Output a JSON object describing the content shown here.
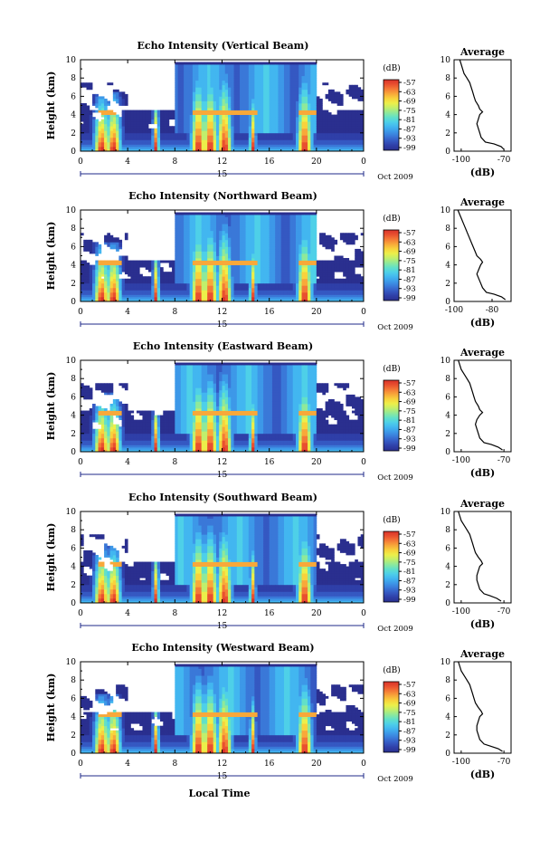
{
  "colors": {
    "scale": [
      "#2a2f8f",
      "#2f3fa8",
      "#3558c2",
      "#3a78d8",
      "#3d98e8",
      "#42b6f0",
      "#4ed0e8",
      "#62e0c8",
      "#8fe99a",
      "#c1ef6c",
      "#ecef4a",
      "#f8d23c",
      "#f8a83a",
      "#f47a36",
      "#e9502f",
      "#d8322a"
    ],
    "background": "#ffffff",
    "line": "#000000",
    "axis_marker": "#1f2a8a"
  },
  "labels": {
    "x_axis": "Local Time",
    "colorbar_unit": "(dB)",
    "colorbar_ticks": [
      "-57",
      "-63",
      "-69",
      "-75",
      "-81",
      "-87",
      "-93",
      "-99"
    ],
    "day_label": "15",
    "month_label": "Oct 2009",
    "avg_title": "Average",
    "avg_xlabel": "(dB)",
    "y_axis": "Height (km)"
  },
  "chart_data": [
    {
      "type": "heatmap",
      "title": "Echo Intensity (Vertical Beam)",
      "xlabel": "",
      "ylabel": "Height (km)",
      "x_ticks": [
        "0",
        "4",
        "8",
        "12",
        "16",
        "20",
        "0"
      ],
      "y_ticks": [
        "0",
        "2",
        "4",
        "6",
        "8",
        "10"
      ],
      "xlim": [
        0,
        24
      ],
      "ylim": [
        0,
        10
      ],
      "zlim": [
        -99,
        -57
      ],
      "colorbar_label": "(dB)",
      "avg_profile": {
        "title": "Average",
        "xlabel": "(dB)",
        "x_ticks": [
          "-100",
          "-70"
        ],
        "y_ticks": [
          "0",
          "2",
          "4",
          "6",
          "8",
          "10"
        ],
        "xlim": [
          -105,
          -65
        ],
        "height_km": [
          0.2,
          0.5,
          0.8,
          1.0,
          1.5,
          2.0,
          2.5,
          3.0,
          3.5,
          4.0,
          4.3,
          4.6,
          5.0,
          5.5,
          6.0,
          6.5,
          7.0,
          7.5,
          8.0,
          8.5,
          9.0,
          9.5,
          10.0
        ],
        "db": [
          -70,
          -72,
          -77,
          -83,
          -86,
          -87,
          -88,
          -89,
          -88,
          -87,
          -85,
          -87,
          -88,
          -90,
          -91,
          -92,
          -93,
          -94,
          -96,
          -98,
          -99,
          -100,
          -101
        ]
      }
    },
    {
      "type": "heatmap",
      "title": "Echo Intensity (Northward Beam)",
      "xlabel": "",
      "ylabel": "Height (km)",
      "x_ticks": [
        "0",
        "4",
        "8",
        "12",
        "16",
        "20",
        "0"
      ],
      "y_ticks": [
        "0",
        "2",
        "4",
        "6",
        "8",
        "10"
      ],
      "xlim": [
        0,
        24
      ],
      "ylim": [
        0,
        10
      ],
      "zlim": [
        -99,
        -57
      ],
      "colorbar_label": "(dB)",
      "avg_profile": {
        "title": "Average",
        "xlabel": "(dB)",
        "x_ticks": [
          "-100",
          "-80"
        ],
        "y_ticks": [
          "0",
          "2",
          "4",
          "6",
          "8",
          "10"
        ],
        "xlim": [
          -100,
          -70
        ],
        "height_km": [
          0.2,
          0.5,
          0.8,
          1.0,
          1.5,
          2.0,
          2.5,
          3.0,
          3.5,
          4.0,
          4.3,
          4.6,
          5.0,
          5.5,
          6.0,
          6.5,
          7.0,
          7.5,
          8.0,
          8.5,
          9.0,
          9.5,
          10.0
        ],
        "db": [
          -73,
          -75,
          -79,
          -83,
          -85,
          -86,
          -87,
          -88,
          -87,
          -86,
          -85,
          -86,
          -88,
          -89,
          -90,
          -91,
          -92,
          -93,
          -94,
          -95,
          -96,
          -97,
          -98
        ]
      }
    },
    {
      "type": "heatmap",
      "title": "Echo Intensity (Eastward Beam)",
      "xlabel": "",
      "ylabel": "Height (km)",
      "x_ticks": [
        "0",
        "4",
        "8",
        "12",
        "16",
        "20",
        "0"
      ],
      "y_ticks": [
        "0",
        "2",
        "4",
        "6",
        "8",
        "10"
      ],
      "xlim": [
        0,
        24
      ],
      "ylim": [
        0,
        10
      ],
      "zlim": [
        -99,
        -57
      ],
      "colorbar_label": "(dB)",
      "avg_profile": {
        "title": "Average",
        "xlabel": "(dB)",
        "x_ticks": [
          "-100",
          "-70"
        ],
        "y_ticks": [
          "0",
          "2",
          "4",
          "6",
          "8",
          "10"
        ],
        "xlim": [
          -105,
          -65
        ],
        "height_km": [
          0.2,
          0.5,
          0.8,
          1.0,
          1.5,
          2.0,
          2.5,
          3.0,
          3.5,
          4.0,
          4.3,
          4.6,
          5.0,
          5.5,
          6.0,
          6.5,
          7.0,
          7.5,
          8.0,
          8.5,
          9.0,
          9.5,
          10.0
        ],
        "db": [
          -71,
          -74,
          -79,
          -84,
          -87,
          -88,
          -89,
          -90,
          -89,
          -87,
          -85,
          -87,
          -88,
          -90,
          -91,
          -92,
          -93,
          -94,
          -96,
          -98,
          -100,
          -101,
          -102
        ]
      }
    },
    {
      "type": "heatmap",
      "title": "Echo Intensity (Southward Beam)",
      "xlabel": "",
      "ylabel": "Height (km)",
      "x_ticks": [
        "0",
        "4",
        "8",
        "12",
        "16",
        "20",
        "0"
      ],
      "y_ticks": [
        "0",
        "2",
        "4",
        "6",
        "8",
        "10"
      ],
      "xlim": [
        0,
        24
      ],
      "ylim": [
        0,
        10
      ],
      "zlim": [
        -99,
        -57
      ],
      "colorbar_label": "(dB)",
      "avg_profile": {
        "title": "Average",
        "xlabel": "(dB)",
        "x_ticks": [
          "-100",
          "-70"
        ],
        "y_ticks": [
          "0",
          "2",
          "4",
          "6",
          "8",
          "10"
        ],
        "xlim": [
          -105,
          -65
        ],
        "height_km": [
          0.2,
          0.5,
          0.8,
          1.0,
          1.5,
          2.0,
          2.5,
          3.0,
          3.5,
          4.0,
          4.3,
          4.6,
          5.0,
          5.5,
          6.0,
          6.5,
          7.0,
          7.5,
          8.0,
          8.5,
          9.0,
          9.5,
          10.0
        ],
        "db": [
          -72,
          -75,
          -80,
          -84,
          -87,
          -88,
          -89,
          -89,
          -88,
          -87,
          -85,
          -86,
          -88,
          -90,
          -91,
          -92,
          -93,
          -94,
          -96,
          -98,
          -100,
          -101,
          -102
        ]
      }
    },
    {
      "type": "heatmap",
      "title": "Echo Intensity (Westward Beam)",
      "xlabel": "Local Time",
      "ylabel": "Height (km)",
      "x_ticks": [
        "0",
        "4",
        "8",
        "12",
        "16",
        "20",
        "0"
      ],
      "y_ticks": [
        "0",
        "2",
        "4",
        "6",
        "8",
        "10"
      ],
      "xlim": [
        0,
        24
      ],
      "ylim": [
        0,
        10
      ],
      "zlim": [
        -99,
        -57
      ],
      "colorbar_label": "(dB)",
      "avg_profile": {
        "title": "Average",
        "xlabel": "(dB)",
        "x_ticks": [
          "-100",
          "-70"
        ],
        "y_ticks": [
          "0",
          "2",
          "4",
          "6",
          "8",
          "10"
        ],
        "xlim": [
          -105,
          -65
        ],
        "height_km": [
          0.2,
          0.5,
          0.8,
          1.0,
          1.5,
          2.0,
          2.5,
          3.0,
          3.5,
          4.0,
          4.3,
          4.6,
          5.0,
          5.5,
          6.0,
          6.5,
          7.0,
          7.5,
          8.0,
          8.5,
          9.0,
          9.5,
          10.0
        ],
        "db": [
          -71,
          -74,
          -80,
          -84,
          -87,
          -88,
          -89,
          -89,
          -88,
          -87,
          -85,
          -86,
          -88,
          -90,
          -91,
          -92,
          -93,
          -94,
          -96,
          -98,
          -100,
          -101,
          -102
        ]
      }
    }
  ]
}
